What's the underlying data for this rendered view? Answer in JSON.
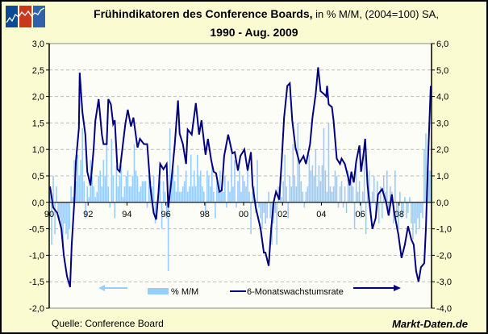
{
  "chart_data": {
    "type": "bar+line",
    "title_bold": "Frühindikatoren des Conference Boards,",
    "title_rest": " in % M/M, (2004=100) SA,",
    "title_line2": "1990 - Aug. 2009",
    "left_axis": {
      "ylim": [
        -2.0,
        3.0
      ],
      "ticks": [
        "3,0",
        "2,5",
        "2,0",
        "1,5",
        "1,0",
        "0,5",
        "0,0",
        "-0,5",
        "-1,0",
        "-1,5",
        "-2,0"
      ]
    },
    "right_axis": {
      "ylim": [
        -4.0,
        6.0
      ],
      "ticks": [
        "6,0",
        "5,0",
        "4,0",
        "3,0",
        "2,0",
        "1,0",
        "0,0",
        "-1,0",
        "-2,0",
        "-3,0",
        "-4,0"
      ]
    },
    "x_ticks": [
      "90",
      "92",
      "94",
      "96",
      "98",
      "00",
      "02",
      "04",
      "06",
      "08"
    ],
    "x_start": "1990-01",
    "x_end": "2009-08",
    "grid": "horizontal dashed",
    "legend_position": "bottom",
    "series": [
      {
        "name": "% M/M",
        "type": "bar",
        "axis": "left",
        "color": "#99CCFF",
        "values": [
          0.2,
          -0.8,
          0.5,
          -0.6,
          0.3,
          -0.2,
          -0.3,
          -0.5,
          -0.8,
          -0.4,
          -0.6,
          -0.7,
          -0.5,
          0.3,
          0.1,
          0.8,
          0.4,
          0.9,
          0.5,
          0.8,
          1.4,
          0.4,
          -0.3,
          0.3,
          0.1,
          0.8,
          0.5,
          0.3,
          0.1,
          0.2,
          0.5,
          0.6,
          0.3,
          0.8,
          0.5,
          1.3,
          0.3,
          -0.1,
          1.2,
          0.5,
          -0.3,
          0.7,
          0.3,
          0.5,
          0.7,
          0.1,
          0.3,
          0.5,
          0.6,
          0.3,
          0.3,
          0.5,
          1.1,
          0.6,
          0.5,
          0.2,
          0.3,
          0.4,
          0.4,
          0.4,
          -0.1,
          0.5,
          0.4,
          0.3,
          0.5,
          -0.4,
          -0.2,
          0.3,
          0.4,
          -0.5,
          0.4,
          0.2,
          -0.3,
          -1.3,
          1.4,
          0.5,
          0.6,
          0.4,
          0.2,
          0.7,
          0.2,
          0.2,
          0.3,
          0.4,
          0.6,
          0.2,
          0.3,
          0.9,
          0.3,
          0.6,
          0.3,
          0.9,
          0.5,
          0.6,
          0.3,
          0.2,
          -0.2,
          0.6,
          0.5,
          0.3,
          0.7,
          0.2,
          -0.3,
          0.4,
          0.2,
          0.6,
          0.3,
          0.2,
          0.5,
          -0.1,
          0.4,
          0.2,
          0.9,
          0.3,
          0.8,
          -0.1,
          0.4,
          0.6,
          0.2,
          0.5,
          0.4,
          0.3,
          0.6,
          0.2,
          -0.6,
          0.2,
          0.3,
          -0.2,
          0.8,
          -0.1,
          -0.3,
          -0.5,
          -0.2,
          -0.4,
          -0.3,
          0.2,
          -0.3,
          -0.8,
          -0.4,
          -0.2,
          -0.8,
          0.3,
          0.5,
          0.1,
          0.4,
          0.9,
          0.3,
          -0.3,
          0.5,
          0.3,
          1.1,
          0.5,
          0.3,
          1.5,
          0.8,
          0.4,
          0.2,
          -0.1,
          0.2,
          0.3,
          0.9,
          0.6,
          0.7,
          0.5,
          1.0,
          0.3,
          0.7,
          0.4,
          0.7,
          1.4,
          0.6,
          0.2,
          1.5,
          0.3,
          0.2,
          0.3,
          0.6,
          0.5,
          -0.1,
          0.3,
          0.4,
          -0.1,
          0.3,
          -0.2,
          0.6,
          0.5,
          0.4,
          0.3,
          -0.5,
          0.7,
          0.2,
          0.4,
          -0.3,
          0.2,
          0.9,
          -0.6,
          0.4,
          0.6,
          -0.2,
          0.2,
          0.5,
          -0.3,
          0.4,
          -0.4,
          0.3,
          -0.3,
          0.5,
          0.2,
          0.6,
          -0.2,
          0.3,
          0.2,
          -0.4,
          0.6,
          -0.3,
          -0.5,
          0.2,
          -0.3,
          -0.2,
          0.1,
          -0.3,
          -0.2,
          0.1,
          -0.4,
          -0.7,
          -0.4,
          -0.6,
          -0.3,
          -0.5,
          -0.2,
          -0.3,
          1.0,
          1.3,
          0.7,
          0.6,
          0.6
        ]
      },
      {
        "name": "6-Monatswachstumsrate",
        "type": "line",
        "axis": "right",
        "color": "#000080",
        "points_month_index_value": [
          [
            0,
            0.6
          ],
          [
            2,
            -0.2
          ],
          [
            4.5,
            -0.4
          ],
          [
            7,
            -1.0
          ],
          [
            8.5,
            -2.0
          ],
          [
            10.5,
            -2.8
          ],
          [
            12.4,
            -3.2
          ],
          [
            13.4,
            -1.6
          ],
          [
            15,
            0
          ],
          [
            16,
            1.55
          ],
          [
            17.8,
            2.8
          ],
          [
            18.3,
            4.9
          ],
          [
            20,
            3.4
          ],
          [
            21.8,
            2.56
          ],
          [
            23,
            1.16
          ],
          [
            25,
            0.64
          ],
          [
            27,
            2.07
          ],
          [
            28,
            3.08
          ],
          [
            30,
            3.9
          ],
          [
            32,
            2.56
          ],
          [
            33,
            2.2
          ],
          [
            35,
            2.2
          ],
          [
            36,
            3.9
          ],
          [
            37.6,
            3.7
          ],
          [
            39,
            2.96
          ],
          [
            40,
            3.1
          ],
          [
            41.6,
            1.25
          ],
          [
            43,
            1.16
          ],
          [
            45,
            2.2
          ],
          [
            46.5,
            2.96
          ],
          [
            48,
            3.5
          ],
          [
            50,
            2.87
          ],
          [
            51.5,
            3.2
          ],
          [
            54,
            2.07
          ],
          [
            55.5,
            2.4
          ],
          [
            58,
            2.2
          ],
          [
            60,
            2.2
          ],
          [
            62,
            0.55
          ],
          [
            64,
            -0.4
          ],
          [
            65.5,
            -0.65
          ],
          [
            67,
            0.4
          ],
          [
            68,
            1.45
          ],
          [
            70,
            1.25
          ],
          [
            72,
            1.45
          ],
          [
            73,
            -0.2
          ],
          [
            75,
            0.85
          ],
          [
            77,
            2.2
          ],
          [
            79,
            3.85
          ],
          [
            80,
            2.6
          ],
          [
            82,
            2.2
          ],
          [
            84,
            1.45
          ],
          [
            85,
            2.75
          ],
          [
            87.5,
            2.56
          ],
          [
            90,
            3.75
          ],
          [
            92,
            2.56
          ],
          [
            93.5,
            3.1
          ],
          [
            96,
            1.8
          ],
          [
            97.5,
            2.4
          ],
          [
            99.5,
            1.6
          ],
          [
            101,
            1.16
          ],
          [
            102.5,
            1.1
          ],
          [
            104.5,
            0.4
          ],
          [
            106,
            0.45
          ],
          [
            107.5,
            1.75
          ],
          [
            110,
            2.56
          ],
          [
            112.5,
            1.85
          ],
          [
            114,
            1.9
          ],
          [
            116,
            1.2
          ],
          [
            117.5,
            1.75
          ],
          [
            120,
            2.0
          ],
          [
            122,
            1.2
          ],
          [
            124,
            1.9
          ],
          [
            125,
            0.64
          ],
          [
            127,
            -0.2
          ],
          [
            130,
            -1.0
          ],
          [
            132,
            -1.9
          ],
          [
            133,
            -1.9
          ],
          [
            135,
            -2.4
          ],
          [
            136.5,
            -1.0
          ],
          [
            138,
            0
          ],
          [
            139.5,
            0.4
          ],
          [
            141.5,
            0.1
          ],
          [
            143,
            1.55
          ],
          [
            144.5,
            3.2
          ],
          [
            146.5,
            4.4
          ],
          [
            148,
            4.5
          ],
          [
            149.5,
            3.1
          ],
          [
            151.5,
            2.07
          ],
          [
            154,
            1.5
          ],
          [
            156.5,
            1.75
          ],
          [
            158,
            1.45
          ],
          [
            160.5,
            2.2
          ],
          [
            162,
            3.2
          ],
          [
            164,
            4.1
          ],
          [
            165.5,
            5.1
          ],
          [
            167,
            4.2
          ],
          [
            169,
            4.1
          ],
          [
            170.5,
            4.0
          ],
          [
            171,
            4.4
          ],
          [
            172,
            3.7
          ],
          [
            174,
            3.6
          ],
          [
            175,
            3.1
          ],
          [
            177,
            1.65
          ],
          [
            179,
            1.45
          ],
          [
            180,
            1.65
          ],
          [
            182,
            1.45
          ],
          [
            184,
            0.95
          ],
          [
            185,
            0.64
          ],
          [
            186,
            1.16
          ],
          [
            187.5,
            0.75
          ],
          [
            189,
            1.55
          ],
          [
            191,
            2.15
          ],
          [
            192,
            1.16
          ],
          [
            193.5,
            1.8
          ],
          [
            194.5,
            2.4
          ],
          [
            196,
            0.64
          ],
          [
            197.5,
            -0.2
          ],
          [
            199,
            -1.0
          ],
          [
            201,
            -0.6
          ],
          [
            202.5,
            0.3
          ],
          [
            205,
            0.5
          ],
          [
            207.5,
            0
          ],
          [
            209,
            -0.5
          ],
          [
            211,
            0.3
          ],
          [
            212.5,
            -0.4
          ],
          [
            215,
            -1.2
          ],
          [
            217,
            -2.1
          ],
          [
            219,
            -1.6
          ],
          [
            221,
            -0.9
          ],
          [
            223,
            -1.4
          ],
          [
            224.5,
            -1.6
          ],
          [
            226,
            -2.6
          ],
          [
            227.5,
            -3.0
          ],
          [
            229,
            -2.45
          ],
          [
            231,
            -2.3
          ],
          [
            232,
            -1.0
          ],
          [
            233.5,
            1.9
          ],
          [
            235,
            4.4
          ]
        ]
      }
    ]
  },
  "source": "Quelle: Conference Board",
  "brand": "Markt-Daten.de"
}
